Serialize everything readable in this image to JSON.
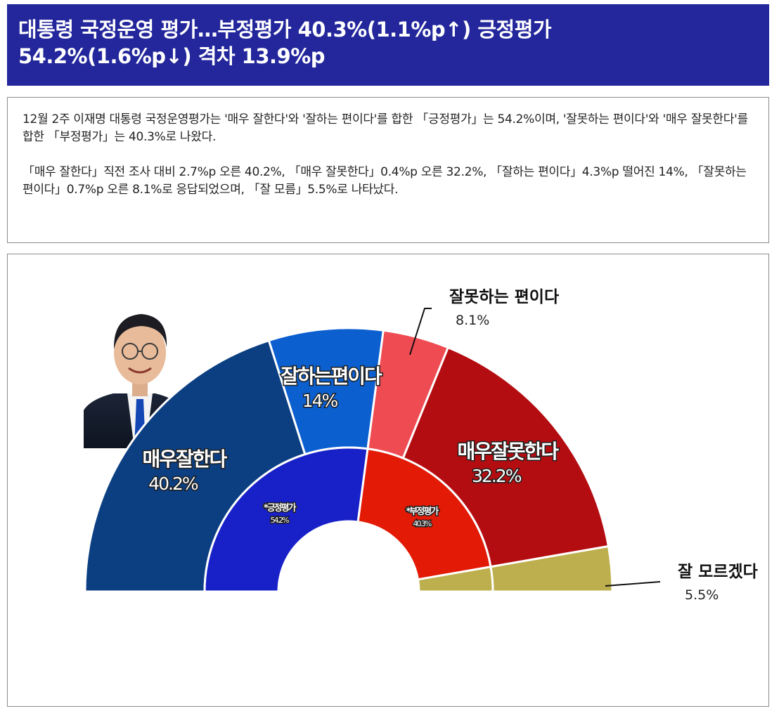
{
  "headline": {
    "line1": "대통령 국정운영 평가…부정평가 40.3%(1.1%p↑) 긍정평가",
    "line2": "54.2%(1.6%p↓) 격차 13.9%p"
  },
  "summary": {
    "para1": "12월 2주 이재명 대통령 국정운영평가는 '매우 잘한다'와 '잘하는 편이다'를 합한 「긍정평가」는 54.2%이며, '잘못하는 편이다'와 '매우 잘못한다'를 합한 「부정평가」는 40.3%로 나왔다.",
    "para2": "「매우 잘한다」직전 조사 대비 2.7%p 오른 40.2%, 「매우 잘못한다」0.4%p 오른 32.2%, 「잘하는 편이다」4.3%p 떨어진 14%, 「잘못하는 편이다」0.7%p 오른 8.1%로 응답되었으며, 「잘 모름」5.5%로 나타났다."
  },
  "chart_data": {
    "type": "pie",
    "subtype": "half-donut (two rings)",
    "outer_ring": [
      {
        "label": "매우잘한다",
        "display": "40.2%",
        "value": 40.2,
        "color": "#0b3f82"
      },
      {
        "label": "잘하는편이다",
        "display": "14%",
        "value": 14.0,
        "color": "#0b5fcf"
      },
      {
        "label": "잘못하는 편이다",
        "display": "8.1%",
        "value": 8.1,
        "color": "#ee4b52"
      },
      {
        "label": "매우잘못한다",
        "display": "32.2%",
        "value": 32.2,
        "color": "#b40d11"
      },
      {
        "label": "잘 모르겠다",
        "display": "5.5%",
        "value": 5.5,
        "color": "#bdaf4d"
      }
    ],
    "inner_ring": [
      {
        "label": "*긍정평가",
        "display": "54.2%",
        "value": 54.2,
        "color": "#1820c8"
      },
      {
        "label": "*부정평가",
        "display": "40.3%",
        "value": 40.3,
        "color": "#e21a06"
      },
      {
        "label": "",
        "display": "",
        "value": 5.5,
        "color": "#bdaf4d"
      }
    ]
  },
  "photo": {
    "icon": "president-portrait"
  }
}
